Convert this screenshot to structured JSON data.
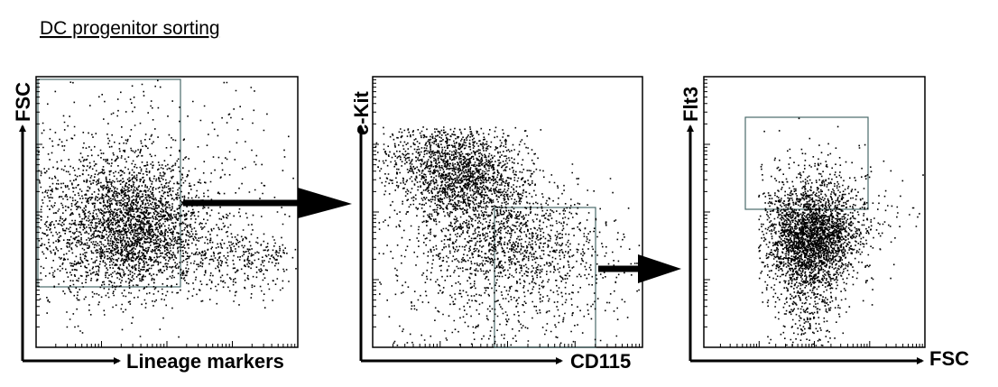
{
  "title": "DC progenitor sorting",
  "panels": [
    {
      "x_label": "Lineage markers",
      "y_label": "FSC"
    },
    {
      "x_label": "CD115",
      "y_label": "c-Kit"
    },
    {
      "x_label": "FSC",
      "y_label": "Flt3"
    }
  ]
}
